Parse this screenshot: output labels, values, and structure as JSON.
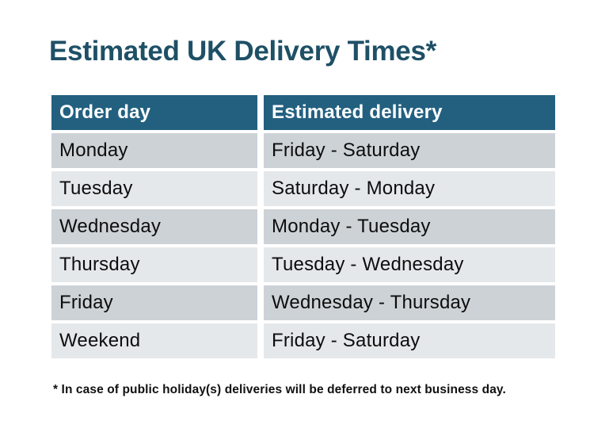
{
  "title": "Estimated UK Delivery Times*",
  "footnote": "* In case of public holiday(s) deliveries will be deferred to next business day.",
  "table": {
    "columns": [
      "Order day",
      "Estimated delivery"
    ],
    "rows": [
      {
        "order_day": "Monday",
        "estimated_delivery": "Friday - Saturday"
      },
      {
        "order_day": "Tuesday",
        "estimated_delivery": "Saturday - Monday"
      },
      {
        "order_day": "Wednesday",
        "estimated_delivery": "Monday - Tuesday"
      },
      {
        "order_day": "Thursday",
        "estimated_delivery": "Tuesday - Wednesday"
      },
      {
        "order_day": "Friday",
        "estimated_delivery": "Wednesday - Thursday"
      },
      {
        "order_day": "Weekend",
        "estimated_delivery": "Friday - Saturday"
      }
    ]
  },
  "chart_data": {
    "type": "table",
    "title": "Estimated UK Delivery Times*",
    "columns": [
      "Order day",
      "Estimated delivery"
    ],
    "rows": [
      [
        "Monday",
        "Friday - Saturday"
      ],
      [
        "Tuesday",
        "Saturday - Monday"
      ],
      [
        "Wednesday",
        "Monday - Tuesday"
      ],
      [
        "Thursday",
        "Tuesday - Wednesday"
      ],
      [
        "Friday",
        "Wednesday - Thursday"
      ],
      [
        "Weekend",
        "Friday - Saturday"
      ]
    ],
    "footnote": "* In case of public holiday(s) deliveries will be deferred to next business day."
  },
  "colors": {
    "page_bg": "#FFFFFF",
    "title_text": "#1E5066",
    "header_bg": "#236080",
    "header_text": "#FFFFFF",
    "row_odd_bg": "#CDD2D7",
    "row_even_bg": "#E5E8EB",
    "cell_text": "#0D0D0D",
    "footnote_text": "#111111"
  }
}
